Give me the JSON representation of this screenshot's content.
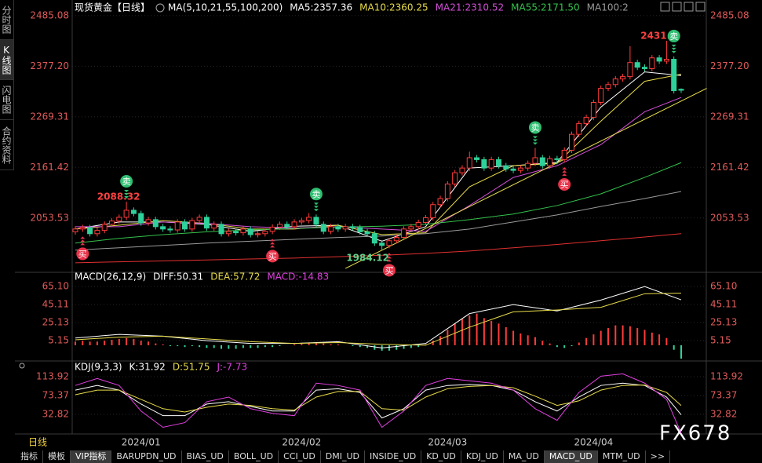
{
  "sidebar_tabs": [
    "分时图",
    "K线图",
    "闪电图",
    "合约资料"
  ],
  "sidebar_active": 1,
  "chart_data": [
    {
      "type": "candlestick",
      "title": "现货黄金【日线】",
      "subtitle": "MA(5,10,21,55,100,200)",
      "categories": [
        null,
        null,
        null,
        null,
        null,
        null,
        null,
        null,
        null,
        "2024/01",
        null,
        null,
        null,
        null,
        null,
        null,
        null,
        null,
        null,
        null,
        null,
        null,
        null,
        null,
        null,
        null,
        null,
        null,
        null,
        null,
        null,
        "2024/02",
        null,
        null,
        null,
        null,
        null,
        null,
        null,
        null,
        null,
        null,
        null,
        null,
        null,
        null,
        null,
        null,
        null,
        null,
        null,
        "2024/03",
        null,
        null,
        null,
        null,
        null,
        null,
        null,
        null,
        null,
        null,
        null,
        null,
        null,
        null,
        null,
        null,
        null,
        null,
        null,
        "2024/04",
        null,
        null,
        null,
        null,
        null,
        null,
        null,
        null,
        null,
        null,
        null,
        null
      ],
      "open": [
        2024,
        2030,
        2033,
        2020,
        2027,
        2040,
        2047,
        2055,
        2070,
        2063,
        2043,
        2050,
        2035,
        2030,
        2028,
        2045,
        2030,
        2048,
        2055,
        2032,
        2040,
        2020,
        2025,
        2022,
        2030,
        2018,
        2020,
        2025,
        2034,
        2040,
        2035,
        2045,
        2048,
        2055,
        2040,
        2025,
        2035,
        2030,
        2035,
        2033,
        2024,
        2020,
        2000,
        1995,
        2005,
        2012,
        2030,
        2035,
        2044,
        2054,
        2082,
        2095,
        2126,
        2150,
        2160,
        2182,
        2178,
        2160,
        2178,
        2165,
        2158,
        2155,
        2160,
        2170,
        2182,
        2165,
        2180,
        2178,
        2198,
        2232,
        2255,
        2268,
        2300,
        2330,
        2338,
        2350,
        2355,
        2385,
        2375,
        2372,
        2395,
        2388,
        2392,
        2328
      ],
      "high": [
        2036,
        2039,
        2039,
        2033,
        2046,
        2053,
        2061,
        2088.32,
        2076,
        2069,
        2056,
        2056,
        2041,
        2036,
        2051,
        2051,
        2054,
        2061,
        2061,
        2046,
        2046,
        2031,
        2031,
        2036,
        2036,
        2026,
        2031,
        2040,
        2046,
        2046,
        2051,
        2054,
        2064,
        2061,
        2046,
        2041,
        2041,
        2041,
        2041,
        2039,
        2030,
        2026,
        2006,
        2011,
        2018,
        2036,
        2041,
        2050,
        2060,
        2088,
        2101,
        2132,
        2156,
        2166,
        2195,
        2188,
        2184,
        2184,
        2184,
        2171,
        2164,
        2166,
        2176,
        2203,
        2188,
        2186,
        2186,
        2204,
        2238,
        2261,
        2274,
        2306,
        2336,
        2344,
        2356,
        2361,
        2420,
        2391,
        2381,
        2401,
        2401,
        2431.4,
        2398,
        2330
      ],
      "low": [
        2018,
        2024,
        2014,
        2014,
        2021,
        2034,
        2041,
        2049,
        2057,
        2037,
        2037,
        2029,
        2024,
        2022,
        2022,
        2024,
        2024,
        2042,
        2026,
        2026,
        2014,
        2014,
        2016,
        2016,
        2012,
        2012,
        2014,
        2019,
        2028,
        2029,
        2029,
        2039,
        2042,
        2034,
        2019,
        2019,
        2024,
        2024,
        2027,
        2018,
        2014,
        1994,
        1984.12,
        1989,
        1999,
        2006,
        2024,
        2029,
        2038,
        2048,
        2076,
        2089,
        2120,
        2144,
        2154,
        2172,
        2154,
        2154,
        2159,
        2152,
        2149,
        2149,
        2154,
        2164,
        2159,
        2159,
        2168,
        2172,
        2192,
        2226,
        2249,
        2262,
        2294,
        2324,
        2332,
        2344,
        2349,
        2369,
        2366,
        2366,
        2382,
        2382,
        2319,
        2320
      ],
      "close": [
        2030,
        2033,
        2020,
        2027,
        2040,
        2047,
        2055,
        2070,
        2063,
        2043,
        2050,
        2035,
        2030,
        2028,
        2045,
        2030,
        2048,
        2055,
        2032,
        2040,
        2020,
        2025,
        2022,
        2030,
        2018,
        2020,
        2025,
        2034,
        2040,
        2035,
        2045,
        2048,
        2055,
        2040,
        2025,
        2035,
        2030,
        2035,
        2033,
        2024,
        2020,
        2000,
        1995,
        2005,
        2012,
        2030,
        2035,
        2044,
        2054,
        2082,
        2095,
        2126,
        2150,
        2160,
        2182,
        2178,
        2160,
        2178,
        2165,
        2158,
        2155,
        2160,
        2170,
        2182,
        2165,
        2180,
        2178,
        2198,
        2232,
        2255,
        2268,
        2300,
        2330,
        2338,
        2350,
        2355,
        2385,
        2375,
        2372,
        2395,
        2388,
        2392,
        2325,
        2326
      ],
      "up_color": "#ff3b3b",
      "down_color": "#2fd19a",
      "ylim": [
        1941,
        2505
      ],
      "yticks": [
        2485.08,
        {
          "value": 2377.2,
          "label": "2377.20"
        },
        2269.31,
        2161.42,
        2053.53
      ],
      "grid": true,
      "series": [
        {
          "name": "MA5:2357.36",
          "color": "#ffffff",
          "x": [
            0,
            6,
            12,
            18,
            24,
            30,
            36,
            42,
            48,
            54,
            60,
            66,
            72,
            78,
            83
          ],
          "values": [
            2030,
            2045,
            2045,
            2040,
            2025,
            2036,
            2038,
            2004,
            2035,
            2160,
            2165,
            2172,
            2290,
            2365,
            2357.36
          ]
        },
        {
          "name": "MA10:2360.25",
          "color": "#e8dc4a",
          "x": [
            0,
            6,
            12,
            18,
            24,
            30,
            36,
            42,
            48,
            54,
            60,
            66,
            72,
            78,
            83
          ],
          "values": [
            2030,
            2038,
            2048,
            2042,
            2030,
            2030,
            2038,
            2018,
            2022,
            2120,
            2165,
            2170,
            2260,
            2345,
            2360.25
          ]
        },
        {
          "name": "MA21:2310.52",
          "color": "#d24fd8",
          "x": [
            0,
            6,
            12,
            18,
            24,
            30,
            36,
            42,
            48,
            54,
            60,
            66,
            72,
            78,
            83
          ],
          "values": [
            2035,
            2035,
            2045,
            2042,
            2035,
            2032,
            2035,
            2030,
            2025,
            2080,
            2140,
            2165,
            2210,
            2280,
            2310.52
          ]
        },
        {
          "name": "MA55:2171.50",
          "color": "#35c24c",
          "x": [
            0,
            6,
            12,
            18,
            24,
            30,
            36,
            42,
            48,
            54,
            60,
            66,
            72,
            78,
            83
          ],
          "values": [
            2000,
            2010,
            2018,
            2024,
            2028,
            2031,
            2034,
            2036,
            2040,
            2050,
            2062,
            2080,
            2105,
            2140,
            2171.5
          ]
        },
        {
          "name": "MA100:2",
          "color": "#9a9a9a",
          "x": [
            0,
            6,
            12,
            18,
            24,
            30,
            36,
            42,
            48,
            54,
            60,
            66,
            72,
            78,
            83
          ],
          "values": [
            1985,
            1990,
            1995,
            2000,
            2004,
            2008,
            2012,
            2015,
            2020,
            2030,
            2045,
            2060,
            2078,
            2095,
            2110
          ]
        },
        {
          "color": "#e03030",
          "x": [
            0,
            6,
            12,
            18,
            24,
            30,
            36,
            42,
            48,
            54,
            60,
            66,
            72,
            78,
            83
          ],
          "values": [
            1958,
            1960,
            1962,
            1964,
            1966,
            1968,
            1971,
            1974,
            1978,
            1983,
            1990,
            1997,
            2005,
            2013,
            2020
          ]
        }
      ],
      "trendline": {
        "color": "#e8e04a",
        "x": [
          37,
          86.5
        ],
        "values": [
          1946,
          2330
        ]
      },
      "high_labels": [
        7,
        81
      ],
      "low_labels": [
        42
      ],
      "signals": [
        {
          "index": 1,
          "label": "买",
          "color": "#e8334a"
        },
        {
          "index": 7,
          "label": "卖",
          "color": "#2fbf71"
        },
        {
          "index": 27,
          "label": "买",
          "color": "#e8334a"
        },
        {
          "index": 33,
          "label": "卖",
          "color": "#2fbf71"
        },
        {
          "index": 43,
          "label": "买",
          "color": "#e8334a"
        },
        {
          "index": 63,
          "label": "卖",
          "color": "#2fbf71"
        },
        {
          "index": 67,
          "label": "买",
          "color": "#e8334a"
        },
        {
          "index": 82,
          "label": "卖",
          "color": "#2fbf71"
        }
      ]
    },
    {
      "type": "macd",
      "title": "MACD(26,12,9)",
      "ylim": [
        -15.7,
        73.8
      ],
      "yticks": [
        {
          "value": 65.1,
          "label": "65.10"
        },
        45.11,
        25.13,
        5.15
      ],
      "grid": true,
      "series": [
        {
          "name": "DIFF:50.31",
          "color": "#ffffff",
          "x": [
            0,
            6,
            12,
            18,
            24,
            30,
            36,
            42,
            48,
            54,
            60,
            66,
            72,
            78,
            83
          ],
          "values": [
            8,
            12,
            10,
            5,
            2,
            2,
            4,
            -3,
            2,
            35,
            45,
            38,
            50,
            65,
            50.31
          ]
        },
        {
          "name": "DEA:57.72",
          "color": "#e8dc4a",
          "x": [
            0,
            6,
            12,
            18,
            24,
            30,
            36,
            42,
            48,
            54,
            60,
            66,
            72,
            78,
            83
          ],
          "values": [
            6,
            9,
            10,
            7,
            4,
            2,
            3,
            1,
            0,
            20,
            37,
            39,
            42,
            57,
            57.72
          ]
        },
        {
          "name": "MACD:-14.83",
          "color": "#e040e0",
          "up_color": "#ff3b3b",
          "down_color": "#2fd19a",
          "values": [
            4,
            5,
            4,
            4,
            5,
            6,
            7,
            8,
            7,
            5,
            4,
            2,
            1,
            -1,
            -1,
            -2,
            -1,
            -2,
            -3,
            -3,
            -4,
            -4,
            -4,
            -3,
            -3,
            -3,
            -2,
            -2,
            -1,
            0,
            1,
            2,
            3,
            2,
            2,
            1,
            1,
            0,
            -1,
            -2,
            -3,
            -5,
            -6,
            -6,
            -5,
            -4,
            -3,
            -2,
            1,
            5,
            10,
            17,
            24,
            29,
            33,
            35,
            30,
            27,
            24,
            20,
            16,
            13,
            11,
            9,
            5,
            2,
            -2,
            -3,
            -1,
            3,
            8,
            12,
            16,
            19,
            22,
            22,
            21,
            19,
            17,
            14,
            12,
            8,
            -5,
            -14.83
          ]
        }
      ]
    },
    {
      "type": "line",
      "title": "KDJ(9,3,3)",
      "ylim": [
        -9.4,
        144.3
      ],
      "yticks": [
        113.92,
        73.37,
        32.82
      ],
      "grid": true,
      "series": [
        {
          "name": "K:31.92",
          "color": "#ffffff",
          "x": [
            0,
            3,
            6,
            9,
            12,
            15,
            18,
            21,
            24,
            27,
            30,
            33,
            36,
            39,
            42,
            45,
            48,
            51,
            54,
            57,
            60,
            63,
            66,
            69,
            72,
            75,
            78,
            81,
            83
          ],
          "values": [
            85,
            95,
            85,
            55,
            30,
            30,
            55,
            60,
            50,
            40,
            40,
            85,
            88,
            80,
            25,
            45,
            85,
            95,
            97,
            95,
            85,
            60,
            40,
            70,
            95,
            100,
            95,
            70,
            31.92
          ]
        },
        {
          "name": "D:51.75",
          "color": "#e8dc4a",
          "x": [
            0,
            3,
            6,
            9,
            12,
            15,
            18,
            21,
            24,
            27,
            30,
            33,
            36,
            39,
            42,
            45,
            48,
            51,
            54,
            57,
            60,
            63,
            66,
            69,
            72,
            75,
            78,
            81,
            83
          ],
          "values": [
            75,
            85,
            85,
            65,
            45,
            38,
            48,
            55,
            52,
            45,
            42,
            70,
            82,
            82,
            45,
            42,
            70,
            88,
            93,
            95,
            90,
            72,
            52,
            62,
            85,
            95,
            96,
            80,
            51.75
          ]
        },
        {
          "name": "J:-7.73",
          "color": "#e040e0",
          "x": [
            0,
            3,
            6,
            9,
            12,
            15,
            18,
            21,
            24,
            27,
            30,
            33,
            36,
            39,
            42,
            45,
            48,
            51,
            54,
            57,
            60,
            63,
            66,
            69,
            72,
            75,
            78,
            81,
            83
          ],
          "values": [
            95,
            110,
            95,
            40,
            5,
            15,
            60,
            70,
            45,
            35,
            30,
            100,
            95,
            85,
            5,
            40,
            95,
            110,
            105,
            100,
            85,
            45,
            20,
            80,
            115,
            120,
            100,
            65,
            -7.73
          ]
        }
      ]
    }
  ],
  "bottom": {
    "period": "日线",
    "watermark": "FX678",
    "tabs": [
      "指标",
      "模板",
      "VIP指标",
      "BARUPDN_UD",
      "BIAS_UD",
      "BOLL_UD",
      "CCI_UD",
      "DMI_UD",
      "INSIDE_UD",
      "KD_UD",
      "KDJ_UD",
      "MA_UD",
      "MACD_UD",
      "MTM_UD",
      ">>"
    ],
    "active_tabs": [
      2,
      12
    ]
  }
}
